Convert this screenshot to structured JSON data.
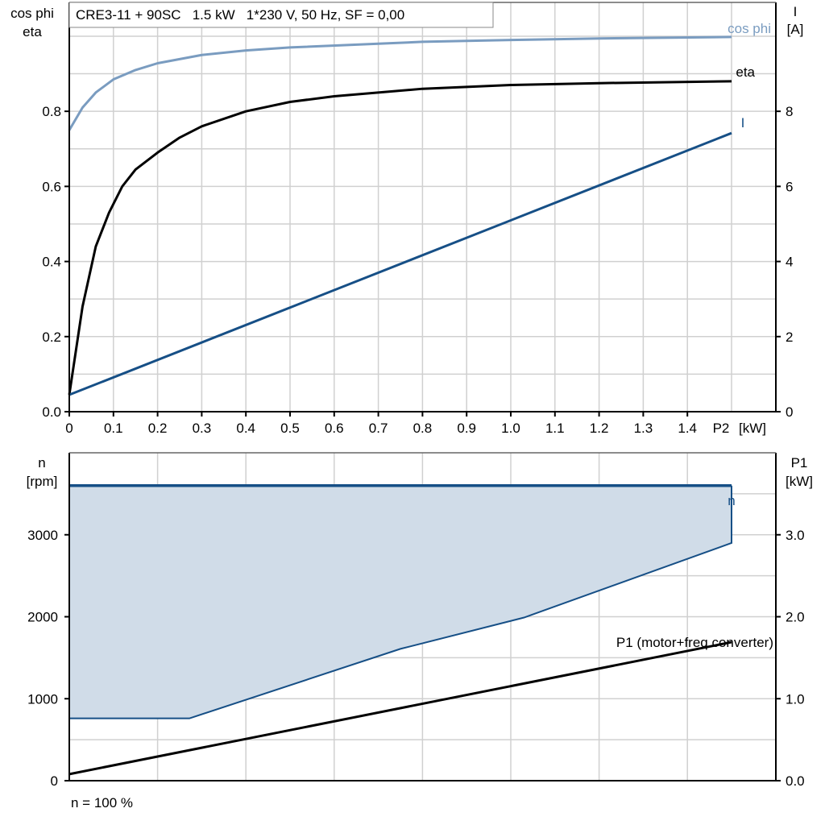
{
  "chart_data": [
    {
      "type": "line",
      "title": "CRE3-11 + 90SC   1.5 kW   1*230 V, 50 Hz, SF = 0,00",
      "xlabel": "P2 [kW]",
      "xlabel_short": "P2",
      "xunit": "[kW]",
      "ylabel_left": [
        "cos phi",
        "eta"
      ],
      "ylabel_right": [
        "I",
        "[A]"
      ],
      "xlim": [
        0,
        1.5
      ],
      "ylim_left": [
        0,
        1.09
      ],
      "ylim_right": [
        0,
        10.9
      ],
      "x_ticks": [
        "0",
        "0.1",
        "0.2",
        "0.3",
        "0.4",
        "0.5",
        "0.6",
        "0.7",
        "0.8",
        "0.9",
        "1.0",
        "1.1",
        "1.2",
        "1.3",
        "1.4"
      ],
      "y_ticks_left": [
        "0.0",
        "0.2",
        "0.4",
        "0.6",
        "0.8"
      ],
      "y_ticks_right": [
        "0",
        "2",
        "4",
        "6",
        "8"
      ],
      "grid": true,
      "series": [
        {
          "name": "cos phi",
          "axis": "left",
          "color": "#7a9cc0",
          "x": [
            0,
            0.03,
            0.06,
            0.1,
            0.15,
            0.2,
            0.3,
            0.4,
            0.5,
            0.7,
            0.8,
            1.0,
            1.2,
            1.5
          ],
          "y": [
            0.75,
            0.81,
            0.85,
            0.885,
            0.91,
            0.928,
            0.95,
            0.962,
            0.97,
            0.98,
            0.985,
            0.99,
            0.994,
            0.998
          ]
        },
        {
          "name": "eta",
          "axis": "left",
          "color": "#000000",
          "x": [
            0,
            0.03,
            0.06,
            0.09,
            0.12,
            0.15,
            0.2,
            0.25,
            0.3,
            0.4,
            0.5,
            0.6,
            0.8,
            1.0,
            1.2,
            1.5
          ],
          "y": [
            0.045,
            0.28,
            0.44,
            0.53,
            0.6,
            0.645,
            0.69,
            0.73,
            0.76,
            0.8,
            0.825,
            0.84,
            0.86,
            0.87,
            0.875,
            0.88
          ]
        },
        {
          "name": "I",
          "axis": "right",
          "color": "#164f86",
          "x": [
            0,
            1.5
          ],
          "y": [
            0.45,
            7.42
          ]
        }
      ]
    },
    {
      "type": "area",
      "ylabel_left": [
        "n",
        "[rpm]"
      ],
      "ylabel_right": [
        "P1",
        "[kW]"
      ],
      "xlim": [
        0,
        1.5
      ],
      "ylim_left": [
        0,
        4000
      ],
      "ylim_right": [
        0,
        4.0
      ],
      "y_ticks_left": [
        "0",
        "1000",
        "2000",
        "3000"
      ],
      "y_ticks_right": [
        "0.0",
        "1.0",
        "2.0",
        "3.0"
      ],
      "grid": true,
      "footnote": "n = 100 %",
      "series": [
        {
          "name": "n",
          "axis": "left",
          "color": "#164f86",
          "x": [
            0,
            1.5
          ],
          "y": [
            3600,
            3600
          ]
        },
        {
          "name": "n range lower bound",
          "axis": "left",
          "color": "#164f86",
          "x": [
            0,
            0.272,
            0.75,
            1.03,
            1.5
          ],
          "y": [
            760,
            760,
            1608,
            1990,
            2900
          ]
        },
        {
          "name": "P1 (motor+freq.converter)",
          "axis": "right",
          "color": "#000000",
          "x": [
            0,
            1.5
          ],
          "y": [
            0.08,
            1.69
          ]
        }
      ],
      "labels": {
        "n": "n",
        "p1": "P1 (motor+freq.converter)"
      },
      "fill_color": "#d0dce8"
    }
  ]
}
